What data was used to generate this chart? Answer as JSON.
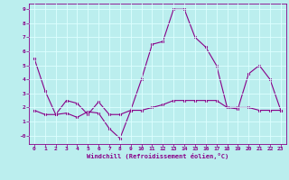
{
  "xlabel": "Windchill (Refroidissement éolien,°C)",
  "line1_x": [
    0,
    1,
    2,
    3,
    4,
    5,
    6,
    7,
    8,
    9,
    10,
    11,
    12,
    13,
    14,
    15,
    16,
    17,
    18,
    19,
    20,
    21,
    22,
    23
  ],
  "line1_y": [
    5.5,
    3.2,
    1.5,
    1.6,
    1.3,
    1.7,
    1.6,
    0.5,
    -0.2,
    1.8,
    4.0,
    6.5,
    6.7,
    9.0,
    9.0,
    7.0,
    6.3,
    5.0,
    2.0,
    1.9,
    4.4,
    5.0,
    4.0,
    1.8
  ],
  "line2_x": [
    0,
    1,
    2,
    3,
    4,
    5,
    6,
    7,
    8,
    9,
    10,
    11,
    12,
    13,
    14,
    15,
    16,
    17,
    18,
    19,
    20,
    21,
    22,
    23
  ],
  "line2_y": [
    1.8,
    1.5,
    1.5,
    2.5,
    2.3,
    1.5,
    2.4,
    1.5,
    1.5,
    1.8,
    1.8,
    2.0,
    2.2,
    2.5,
    2.5,
    2.5,
    2.5,
    2.5,
    2.0,
    2.0,
    2.0,
    1.8,
    1.8,
    1.8
  ],
  "line_color": "#880088",
  "bg_color": "#bbeeee",
  "grid_color": "#ddffff",
  "ylim": [
    -0.6,
    9.4
  ],
  "xlim": [
    -0.5,
    23.5
  ],
  "yticks": [
    0,
    1,
    2,
    3,
    4,
    5,
    6,
    7,
    8,
    9
  ],
  "ytick_labels": [
    "-0",
    "1",
    "2",
    "3",
    "4",
    "5",
    "6",
    "7",
    "8",
    "9"
  ],
  "xticks": [
    0,
    1,
    2,
    3,
    4,
    5,
    6,
    7,
    8,
    9,
    10,
    11,
    12,
    13,
    14,
    15,
    16,
    17,
    18,
    19,
    20,
    21,
    22,
    23
  ]
}
